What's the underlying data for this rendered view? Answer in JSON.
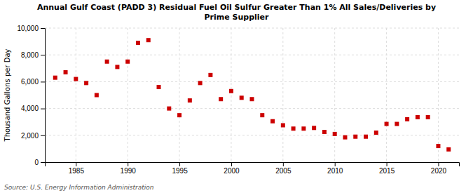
{
  "chart_data": {
    "type": "scatter",
    "title": "Annual Gulf Coast (PADD 3) Residual Fuel Oil Sulfur Greater Than 1% All Sales/Deliveries by\nPrime Supplier",
    "ylabel": "Thousand Gallons per Day",
    "source": "Source: U.S. Energy Information Administration",
    "x": [
      1983,
      1984,
      1985,
      1986,
      1987,
      1988,
      1989,
      1990,
      1991,
      1992,
      1993,
      1994,
      1995,
      1996,
      1997,
      1998,
      1999,
      2000,
      2001,
      2002,
      2003,
      2004,
      2005,
      2006,
      2007,
      2008,
      2009,
      2010,
      2011,
      2012,
      2013,
      2014,
      2015,
      2016,
      2017,
      2018,
      2019,
      2020,
      2021
    ],
    "values": [
      6300,
      6700,
      6200,
      5900,
      5000,
      7500,
      7100,
      7500,
      8900,
      9100,
      5600,
      4000,
      3500,
      4600,
      5900,
      6500,
      4700,
      5300,
      4800,
      4700,
      3500,
      3050,
      2750,
      2500,
      2500,
      2550,
      2250,
      2100,
      1850,
      1900,
      1900,
      2200,
      2850,
      2850,
      3200,
      3350,
      3350,
      1200,
      950
    ],
    "color": "#cc0000",
    "marker": "square",
    "xlim": [
      1982,
      2022
    ],
    "xticks": [
      1985,
      1990,
      1995,
      2000,
      2005,
      2010,
      2015,
      2020
    ],
    "ylim": [
      0,
      10000
    ],
    "yticks": [
      0,
      {
        "value": 2000,
        "label": "2,000"
      },
      {
        "value": 4000,
        "label": "4,000"
      },
      {
        "value": 6000,
        "label": "6,000"
      },
      {
        "value": 8000,
        "label": "8,000"
      },
      {
        "value": 10000,
        "label": "10,000"
      }
    ],
    "grid": true
  }
}
